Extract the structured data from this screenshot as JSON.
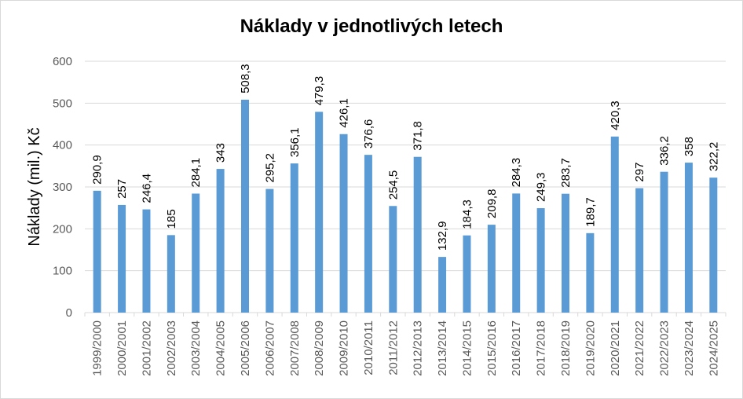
{
  "chart_data": {
    "type": "bar",
    "title": "Náklady v jednotlivých letech",
    "xlabel": "",
    "ylabel": "Náklady (mil.) Kč",
    "ylim": [
      0,
      600
    ],
    "yticks": [
      "0",
      "100",
      "200",
      "300",
      "400",
      "500",
      "600"
    ],
    "grid": true,
    "legend": "none",
    "bar_color": "#5b9bd5",
    "categories": [
      "1999/2000",
      "2000/2001",
      "2001/2002",
      "2002/2003",
      "2003/2004",
      "2004/2005",
      "2005/2006",
      "2006/2007",
      "2007/2008",
      "2008/2009",
      "2009/2010",
      "2010/2011",
      "2011/2012",
      "2012/2013",
      "2013/2014",
      "2014/2015",
      "2015/2016",
      "2016/2017",
      "2017/2018",
      "2018/2019",
      "2019/2020",
      "2020/2021",
      "2021/2022",
      "2022/2023",
      "2023/2024",
      "2024/2025"
    ],
    "values": [
      290.9,
      257,
      246.4,
      185,
      284.1,
      343,
      508.3,
      295.2,
      356.1,
      479.3,
      426.1,
      376.6,
      254.5,
      371.8,
      132.9,
      184.3,
      209.8,
      284.3,
      249.3,
      283.7,
      189.7,
      420.3,
      297,
      336.2,
      358,
      322.2
    ],
    "data_labels": [
      "290,9",
      "257",
      "246,4",
      "185",
      "284,1",
      "343",
      "508,3",
      "295,2",
      "356,1",
      "479,3",
      "426,1",
      "376,6",
      "254,5",
      "371,8",
      "132,9",
      "184,3",
      "209,8",
      "284,3",
      "249,3",
      "283,7",
      "189,7",
      "420,3",
      "297",
      "336,2",
      "358",
      "322,2"
    ]
  }
}
